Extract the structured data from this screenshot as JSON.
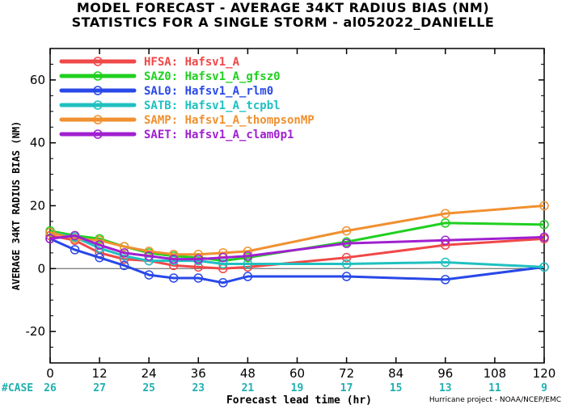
{
  "title_line1": "MODEL FORECAST - AVERAGE 34KT RADIUS BIAS (NM)",
  "title_line2": "STATISTICS FOR A SINGLE STORM - al052022_DANIELLE",
  "credit": "Hurricane project - NOAA/NCEP/EMC",
  "case_label": "#CASE",
  "case_color": "#20b0b0",
  "chart_data": {
    "type": "line",
    "xlabel": "Forecast lead time (hr)",
    "ylabel": "AVERAGE 34KT RADIUS BIAS (NM)",
    "xlim": [
      0,
      120
    ],
    "ylim": [
      -30,
      70
    ],
    "x_ticks": [
      0,
      12,
      24,
      36,
      48,
      60,
      72,
      84,
      96,
      108,
      120
    ],
    "y_ticks": [
      -20,
      0,
      20,
      40,
      60
    ],
    "cases": [
      26,
      27,
      25,
      23,
      21,
      19,
      17,
      15,
      13,
      11,
      9
    ],
    "legend_position": "top-left",
    "series": [
      {
        "name": "HFSA:  Hafsv1_A",
        "color": "#f04848",
        "x": [
          0,
          6,
          12,
          18,
          24,
          30,
          36,
          42,
          48,
          72,
          96,
          120
        ],
        "y": [
          10.5,
          9.0,
          5.0,
          3.0,
          2.5,
          1.0,
          0.5,
          0.0,
          0.5,
          3.5,
          7.5,
          9.5
        ]
      },
      {
        "name": "SAZ0:  Hafsv1_A_gfsz0",
        "color": "#20d020",
        "x": [
          0,
          6,
          12,
          18,
          24,
          30,
          36,
          42,
          48,
          72,
          96,
          120
        ],
        "y": [
          12.0,
          10.5,
          9.5,
          7.0,
          5.0,
          4.0,
          3.5,
          2.5,
          3.5,
          8.5,
          14.5,
          14.0
        ]
      },
      {
        "name": "SAL0:  Hafsv1_A_rlm0",
        "color": "#2848e8",
        "x": [
          0,
          6,
          12,
          18,
          24,
          30,
          36,
          42,
          48,
          72,
          96,
          120
        ],
        "y": [
          9.5,
          6.0,
          3.5,
          1.0,
          -2.0,
          -3.0,
          -3.0,
          -4.5,
          -2.5,
          -2.5,
          -3.5,
          0.5
        ]
      },
      {
        "name": "SATB:  Hafsv1_A_tcpbl",
        "color": "#20c0c0",
        "x": [
          0,
          6,
          12,
          18,
          24,
          30,
          36,
          42,
          48,
          72,
          96,
          120
        ],
        "y": [
          11.5,
          10.0,
          6.5,
          4.0,
          2.5,
          2.5,
          2.5,
          1.5,
          1.5,
          1.5,
          2.0,
          0.5
        ]
      },
      {
        "name": "SAMP:  Hafsv1_A_thompsonMP",
        "color": "#f09030",
        "x": [
          0,
          6,
          12,
          18,
          24,
          30,
          36,
          42,
          48,
          72,
          96,
          120
        ],
        "y": [
          11.5,
          9.5,
          9.0,
          7.0,
          5.5,
          4.5,
          4.5,
          5.0,
          5.5,
          12.0,
          17.5,
          20.0
        ]
      },
      {
        "name": "SAET:  Hafsv1_A_clam0p1",
        "color": "#a020d0",
        "x": [
          0,
          6,
          12,
          18,
          24,
          30,
          36,
          42,
          48,
          72,
          96,
          120
        ],
        "y": [
          9.5,
          10.5,
          7.5,
          5.0,
          4.0,
          3.0,
          3.0,
          3.5,
          4.0,
          8.0,
          9.0,
          10.0
        ]
      }
    ]
  }
}
